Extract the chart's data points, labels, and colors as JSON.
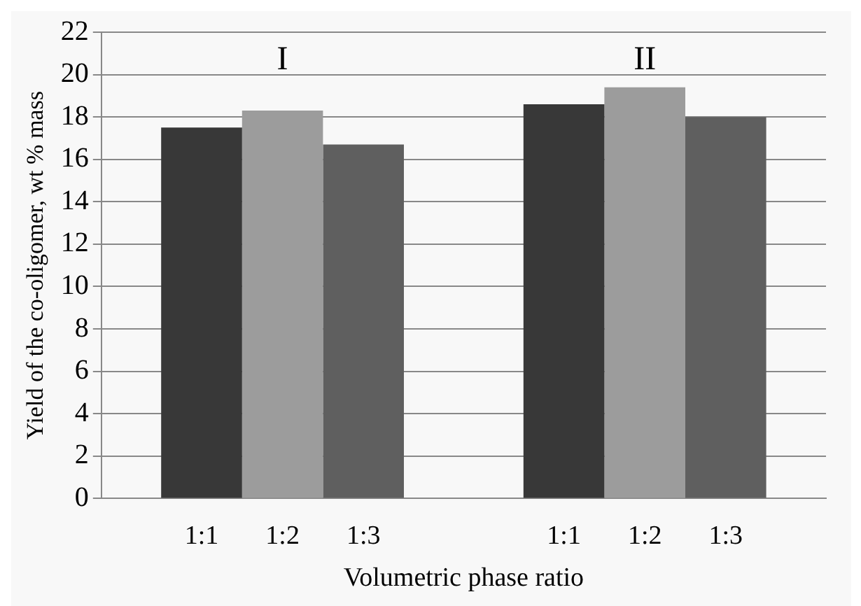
{
  "chart_data": {
    "type": "bar",
    "categories": [
      "I",
      "II"
    ],
    "xlabel": "Volumetric phase ratio",
    "ylabel": "Yield of the co-oligomer, wt % mass",
    "series": [
      {
        "name": "1:1",
        "color": "#383838",
        "values": [
          17.5,
          18.6
        ]
      },
      {
        "name": "1:2",
        "color": "#9c9c9c",
        "values": [
          18.3,
          19.4
        ]
      },
      {
        "name": "1:3",
        "color": "#5f5f5f",
        "values": [
          16.7,
          18.0
        ]
      }
    ],
    "ylim": [
      0,
      22
    ],
    "yticks": [
      0,
      2,
      4,
      6,
      8,
      10,
      12,
      14,
      16,
      18,
      20,
      22
    ],
    "grid": "y",
    "legend": false
  }
}
